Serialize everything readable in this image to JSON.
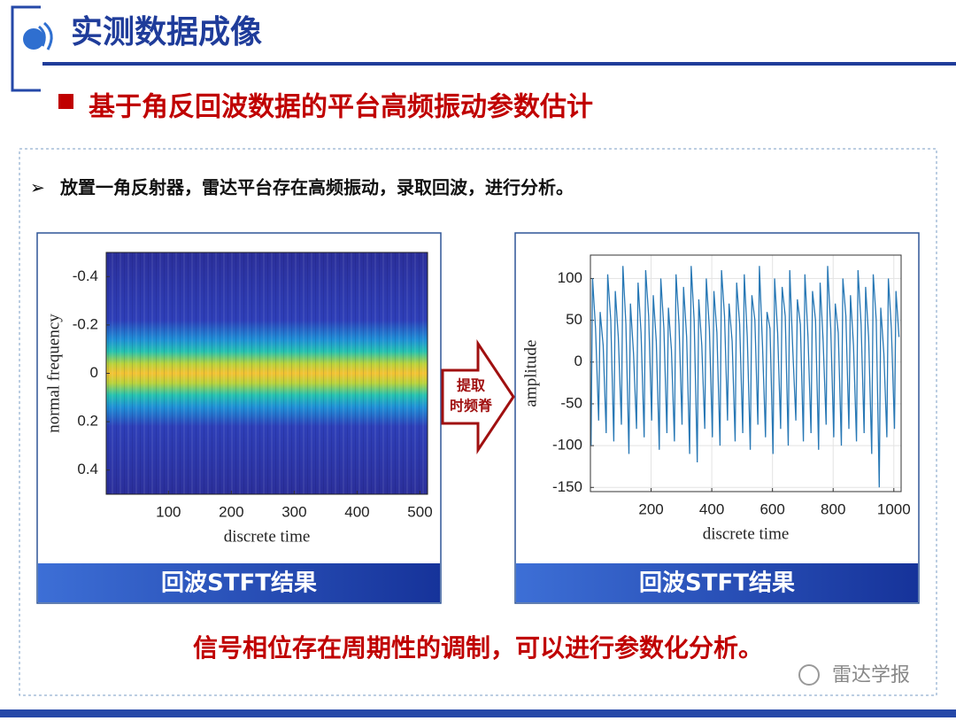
{
  "header": {
    "title": "实测数据成像",
    "subtitle": "基于角反回波数据的平台高频振动参数估计"
  },
  "bullet": "放置一角反射器，雷达平台存在高频振动，录取回波，进行分析。",
  "arrow_label": [
    "提取",
    "时频脊"
  ],
  "chart_data": [
    {
      "type": "heatmap",
      "caption": "回波STFT结果",
      "xlabel": "discrete time",
      "ylabel": "normal frequency",
      "xlim": [
        1,
        512
      ],
      "ylim": [
        -0.5,
        0.5
      ],
      "y_reversed": true,
      "xticks": [
        100,
        200,
        300,
        400,
        500
      ],
      "yticks": [
        -0.4,
        -0.2,
        0,
        0.2,
        0.4
      ]
    },
    {
      "type": "line",
      "caption": "回波STFT结果",
      "xlabel": "discrete time",
      "ylabel": "amplitude",
      "xlim": [
        0,
        1024
      ],
      "ylim": [
        -155,
        128
      ],
      "grid": true,
      "color": "#2878b5",
      "xticks": [
        200,
        400,
        600,
        800,
        1000
      ],
      "yticks": [
        100,
        50,
        0,
        -50,
        -100,
        -150
      ],
      "x": [
        2,
        7,
        17,
        27,
        32,
        42,
        52,
        57,
        67,
        77,
        82,
        92,
        102,
        107,
        117,
        127,
        132,
        142,
        152,
        157,
        167,
        177,
        182,
        192,
        202,
        207,
        217,
        227,
        232,
        242,
        252,
        257,
        267,
        277,
        282,
        292,
        302,
        307,
        317,
        327,
        332,
        342,
        352,
        357,
        367,
        377,
        382,
        392,
        402,
        407,
        417,
        427,
        432,
        442,
        452,
        457,
        467,
        477,
        482,
        492,
        502,
        507,
        517,
        527,
        532,
        542,
        552,
        557,
        567,
        577,
        582,
        592,
        602,
        607,
        617,
        627,
        632,
        642,
        652,
        657,
        667,
        677,
        682,
        692,
        702,
        707,
        717,
        727,
        732,
        742,
        752,
        757,
        767,
        777,
        782,
        792,
        802,
        807,
        817,
        827,
        832,
        842,
        852,
        857,
        867,
        877,
        882,
        892,
        902,
        907,
        917,
        927,
        932,
        942,
        952,
        957,
        967,
        977,
        982,
        992,
        1002,
        1007,
        1017
      ],
      "values": [
        -100,
        100,
        40,
        -70,
        60,
        20,
        -85,
        105,
        50,
        -95,
        85,
        30,
        -75,
        115,
        45,
        -110,
        70,
        10,
        -80,
        95,
        35,
        -90,
        110,
        55,
        -70,
        80,
        25,
        -105,
        100,
        40,
        -85,
        65,
        15,
        -95,
        105,
        45,
        -75,
        90,
        30,
        -110,
        115,
        50,
        -120,
        75,
        20,
        -80,
        100,
        40,
        -90,
        85,
        35,
        -100,
        110,
        55,
        -70,
        70,
        25,
        -95,
        95,
        45,
        -85,
        105,
        30,
        -105,
        80,
        50,
        -75,
        115,
        20,
        -90,
        60,
        40,
        -110,
        100,
        35,
        -80,
        90,
        55,
        -100,
        110,
        15,
        -70,
        75,
        45,
        -95,
        105,
        30,
        -85,
        85,
        50,
        -105,
        95,
        25,
        -75,
        115,
        40,
        -90,
        70,
        35,
        -100,
        100,
        55,
        -80,
        80,
        20,
        -95,
        110,
        45,
        -85,
        90,
        30,
        -110,
        105,
        50,
        -150,
        65,
        10,
        -90,
        100,
        40,
        -80,
        85,
        30
      ]
    }
  ],
  "conclusion": "信号相位存在周期性的调制，可以进行参数化分析。",
  "watermark": "雷达学报"
}
